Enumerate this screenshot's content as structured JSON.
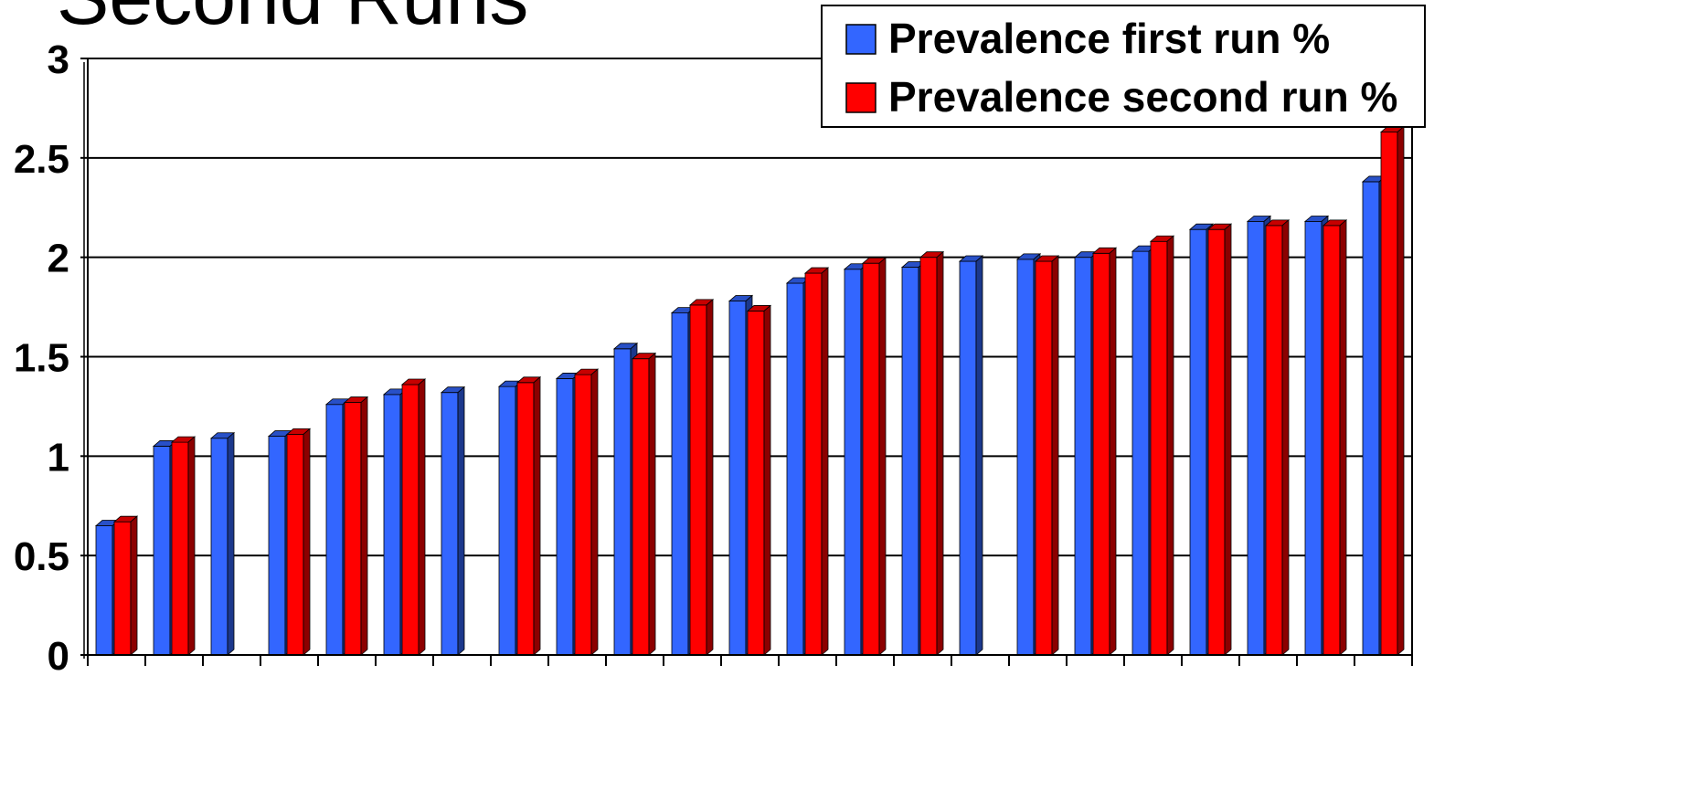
{
  "title": "Second Runs",
  "chart_data": {
    "type": "bar",
    "title": "Second Runs",
    "xlabel": "",
    "ylabel": "",
    "ylim": [
      0,
      3
    ],
    "yticks": [
      "0",
      "0.5",
      "1",
      "1.5",
      "2",
      "2.5",
      "3"
    ],
    "grid": true,
    "legend_position": "top-right",
    "series": [
      {
        "name": "Prevalence first run %",
        "color": "#3366ff",
        "values": [
          0.65,
          1.05,
          1.09,
          1.1,
          1.26,
          1.31,
          1.32,
          1.35,
          1.39,
          1.54,
          1.72,
          1.78,
          1.87,
          1.94,
          1.95,
          1.98,
          1.99,
          2.0,
          2.03,
          2.14,
          2.18,
          2.18,
          2.38
        ]
      },
      {
        "name": "Prevalence second run %",
        "color": "#ff0000",
        "values": [
          0.67,
          1.07,
          null,
          1.11,
          1.27,
          1.36,
          null,
          1.37,
          1.41,
          1.49,
          1.76,
          1.73,
          1.92,
          1.97,
          2.0,
          null,
          1.98,
          2.02,
          2.08,
          2.14,
          2.16,
          2.16,
          2.63
        ]
      }
    ]
  }
}
